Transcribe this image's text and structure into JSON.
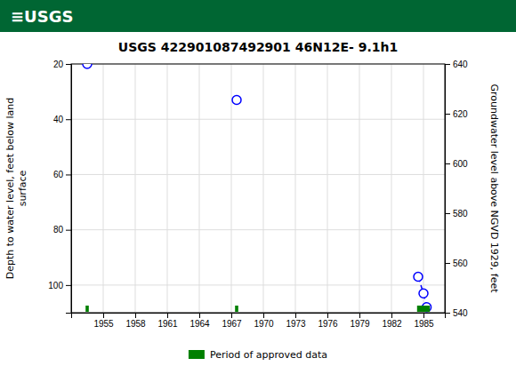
{
  "chart_data": {
    "type": "line",
    "title": "USGS 422901087492901 46N12E- 9.1h1",
    "annotations": [
      "≡USGS"
    ],
    "ylabel": "Depth to water level, feet below land\nsurface",
    "y2label": "Groundwater level above NGVD 1929, feet",
    "xlim": [
      1952,
      1987
    ],
    "ylim": [
      110,
      20
    ],
    "y2lim": [
      540,
      640
    ],
    "xticks": [
      1955,
      1958,
      1961,
      1964,
      1967,
      1970,
      1973,
      1976,
      1979,
      1982,
      1985
    ],
    "yticks": [
      20,
      40,
      60,
      80,
      100
    ],
    "y2ticks": [
      540,
      560,
      580,
      600,
      620,
      640
    ],
    "grid": true,
    "legend": "bottom",
    "series": [
      {
        "type": "scatter",
        "x": [
          1953.5,
          1967.5
        ],
        "values": [
          20,
          33
        ],
        "color": "blue",
        "marker": "circle",
        "line_style": "none"
      },
      {
        "type": "line",
        "x": [
          1984.5,
          1985.0,
          1985.3
        ],
        "values": [
          97,
          103,
          108
        ],
        "color": "blue",
        "marker": "circle",
        "line_style": "dashed"
      },
      {
        "type": "bar",
        "name": "Period of approved data",
        "x": [
          1953.5,
          1967.5,
          1985.0
        ],
        "widths": [
          0.3,
          0.3,
          1.2
        ],
        "color": "#008000"
      }
    ]
  }
}
